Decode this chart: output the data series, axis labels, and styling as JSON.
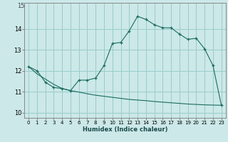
{
  "xlabel": "Humidex (Indice chaleur)",
  "background_color": "#cce8e8",
  "grid_color": "#99cccc",
  "line_color": "#1a6b60",
  "ylim": [
    9.75,
    15.25
  ],
  "xlim": [
    -0.5,
    23.5
  ],
  "yticks": [
    10,
    11,
    12,
    13,
    14
  ],
  "ytick_labels": [
    "10",
    "11",
    "12",
    "13",
    "14"
  ],
  "ymax_label": "15",
  "xticks": [
    0,
    1,
    2,
    3,
    4,
    5,
    6,
    7,
    8,
    9,
    10,
    11,
    12,
    13,
    14,
    15,
    16,
    17,
    18,
    19,
    20,
    21,
    22,
    23
  ],
  "upper_x": [
    0,
    1,
    2,
    3,
    4,
    5,
    6,
    7,
    8,
    9,
    10,
    11,
    12,
    13,
    14,
    15,
    16,
    17,
    18,
    19,
    20,
    21,
    22,
    23
  ],
  "upper_y": [
    12.2,
    12.0,
    11.45,
    11.2,
    11.15,
    11.05,
    11.55,
    11.55,
    11.65,
    12.25,
    13.3,
    13.35,
    13.9,
    14.6,
    14.45,
    14.2,
    14.05,
    14.05,
    13.75,
    13.5,
    13.55,
    13.05,
    12.25,
    10.35
  ],
  "lower_x": [
    0,
    1,
    2,
    3,
    4,
    5,
    6,
    7,
    8,
    9,
    10,
    11,
    12,
    13,
    14,
    15,
    16,
    17,
    18,
    19,
    20,
    21,
    22,
    23
  ],
  "lower_y": [
    12.2,
    11.85,
    11.6,
    11.35,
    11.15,
    11.05,
    10.98,
    10.9,
    10.83,
    10.78,
    10.73,
    10.68,
    10.63,
    10.6,
    10.57,
    10.53,
    10.5,
    10.47,
    10.44,
    10.41,
    10.39,
    10.37,
    10.36,
    10.35
  ]
}
